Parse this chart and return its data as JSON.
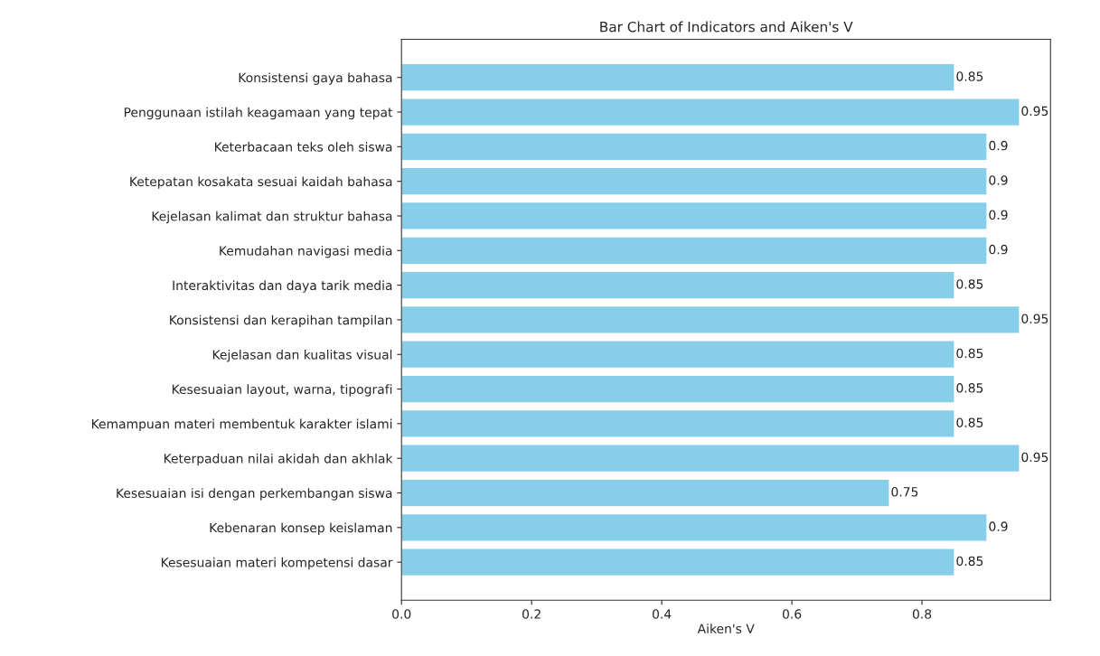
{
  "chart_data": {
    "type": "bar",
    "orientation": "horizontal",
    "title": "Bar Chart of Indicators and Aiken's V",
    "xlabel": "Aiken's V",
    "categories": [
      "Konsistensi gaya bahasa",
      "Penggunaan istilah keagamaan yang tepat",
      "Keterbacaan teks oleh siswa",
      "Ketepatan kosakata sesuai kaidah bahasa",
      "Kejelasan kalimat dan struktur bahasa",
      "Kemudahan navigasi media",
      "Interaktivitas dan daya tarik media",
      "Konsistensi dan kerapihan tampilan",
      "Kejelasan dan kualitas visual",
      "Kesesuaian layout, warna, tipografi",
      "Kemampuan materi membentuk karakter islami",
      "Keterpaduan nilai akidah dan akhlak",
      "Kesesuaian isi dengan perkembangan siswa",
      "Kebenaran konsep keislaman",
      "Kesesuaian materi kompetensi dasar"
    ],
    "values": [
      0.85,
      0.95,
      0.9,
      0.9,
      0.9,
      0.9,
      0.85,
      0.95,
      0.85,
      0.85,
      0.85,
      0.95,
      0.75,
      0.9,
      0.85
    ],
    "color": "#87ceeb",
    "xlim": [
      0,
      0.9975
    ],
    "xticks": [
      {
        "value": 0,
        "label": "0.0"
      },
      0.2,
      0.4,
      0.6,
      0.8
    ],
    "data_labels": true,
    "grid": false,
    "legend": false
  }
}
